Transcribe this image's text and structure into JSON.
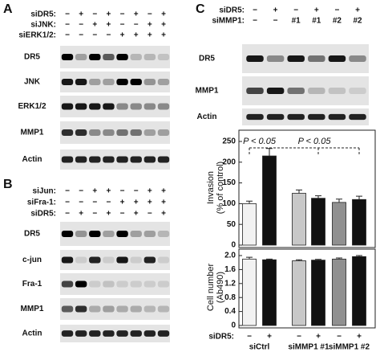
{
  "panels": [
    {
      "label": "A",
      "conditions": [
        {
          "name": "siDR5:",
          "signs": [
            "−",
            "+",
            "−",
            "+",
            "−",
            "+",
            "−",
            "+"
          ]
        },
        {
          "name": "siJNK:",
          "signs": [
            "−",
            "−",
            "+",
            "+",
            "−",
            "−",
            "+",
            "+"
          ]
        },
        {
          "name": "siERK1/2:",
          "signs": [
            "−",
            "−",
            "−",
            "−",
            "+",
            "+",
            "+",
            "+"
          ]
        }
      ],
      "blots": [
        "DR5",
        "JNK",
        "ERK1/2",
        "MMP1",
        "Actin"
      ]
    },
    {
      "label": "B",
      "conditions": [
        {
          "name": "siJun:",
          "signs": [
            "−",
            "−",
            "+",
            "+",
            "−",
            "−",
            "+",
            "+"
          ]
        },
        {
          "name": "siFra-1:",
          "signs": [
            "−",
            "−",
            "−",
            "−",
            "+",
            "+",
            "+",
            "+"
          ]
        },
        {
          "name": "siDR5:",
          "signs": [
            "−",
            "+",
            "−",
            "+",
            "−",
            "+",
            "−",
            "+"
          ]
        }
      ],
      "blots": [
        "DR5",
        "c-jun",
        "Fra-1",
        "MMP1",
        "Actin"
      ]
    },
    {
      "label": "C",
      "conditions": [
        {
          "name": "siDR5:",
          "signs": [
            "−",
            "+",
            "−",
            "+",
            "−",
            "+"
          ]
        },
        {
          "name": "siMMP1:",
          "signs": [
            "−",
            "−",
            "#1",
            "#1",
            "#2",
            "#2"
          ]
        }
      ],
      "blots": [
        "DR5",
        "MMP1",
        "Actin"
      ]
    }
  ],
  "chart_data": [
    {
      "type": "bar",
      "ylabel": [
        "Invasion",
        "(% of control)"
      ],
      "values": [
        100,
        215,
        125,
        113,
        103,
        110
      ],
      "errors": [
        6,
        18,
        8,
        6,
        8,
        8
      ],
      "colors": [
        "#f2f2f2",
        "#111111",
        "#c8c8c8",
        "#111111",
        "#909090",
        "#111111"
      ],
      "ylim": [
        0,
        250
      ],
      "yticks": [
        0,
        50,
        100,
        150,
        200,
        250
      ],
      "annotations": [
        "P < 0.05",
        "P < 0.05"
      ]
    },
    {
      "type": "bar",
      "ylabel": [
        "Cell number",
        "(Ab490)"
      ],
      "values": [
        1.9,
        1.88,
        1.85,
        1.87,
        1.9,
        1.97
      ],
      "errors": [
        0.05,
        0.02,
        0.03,
        0.02,
        0.03,
        0.03
      ],
      "colors": [
        "#f2f2f2",
        "#111111",
        "#c8c8c8",
        "#111111",
        "#909090",
        "#111111"
      ],
      "ylim": [
        0,
        2.0
      ],
      "yticks": [
        0,
        {
          "value": 0.4,
          "label": "0.4"
        },
        {
          "value": 0.8,
          "label": "0.8"
        },
        {
          "value": 1.2,
          "label": "1.2"
        },
        {
          "value": 1.6,
          "label": "1.6"
        },
        {
          "value": 2,
          "label": "2.0"
        }
      ],
      "xlabel": "siDR5:",
      "categories": [
        "−",
        "+",
        "−",
        "+",
        "−",
        "+"
      ],
      "groups": [
        "siCtrl",
        "siMMP1 #1",
        "siMMP1 #2"
      ]
    }
  ]
}
